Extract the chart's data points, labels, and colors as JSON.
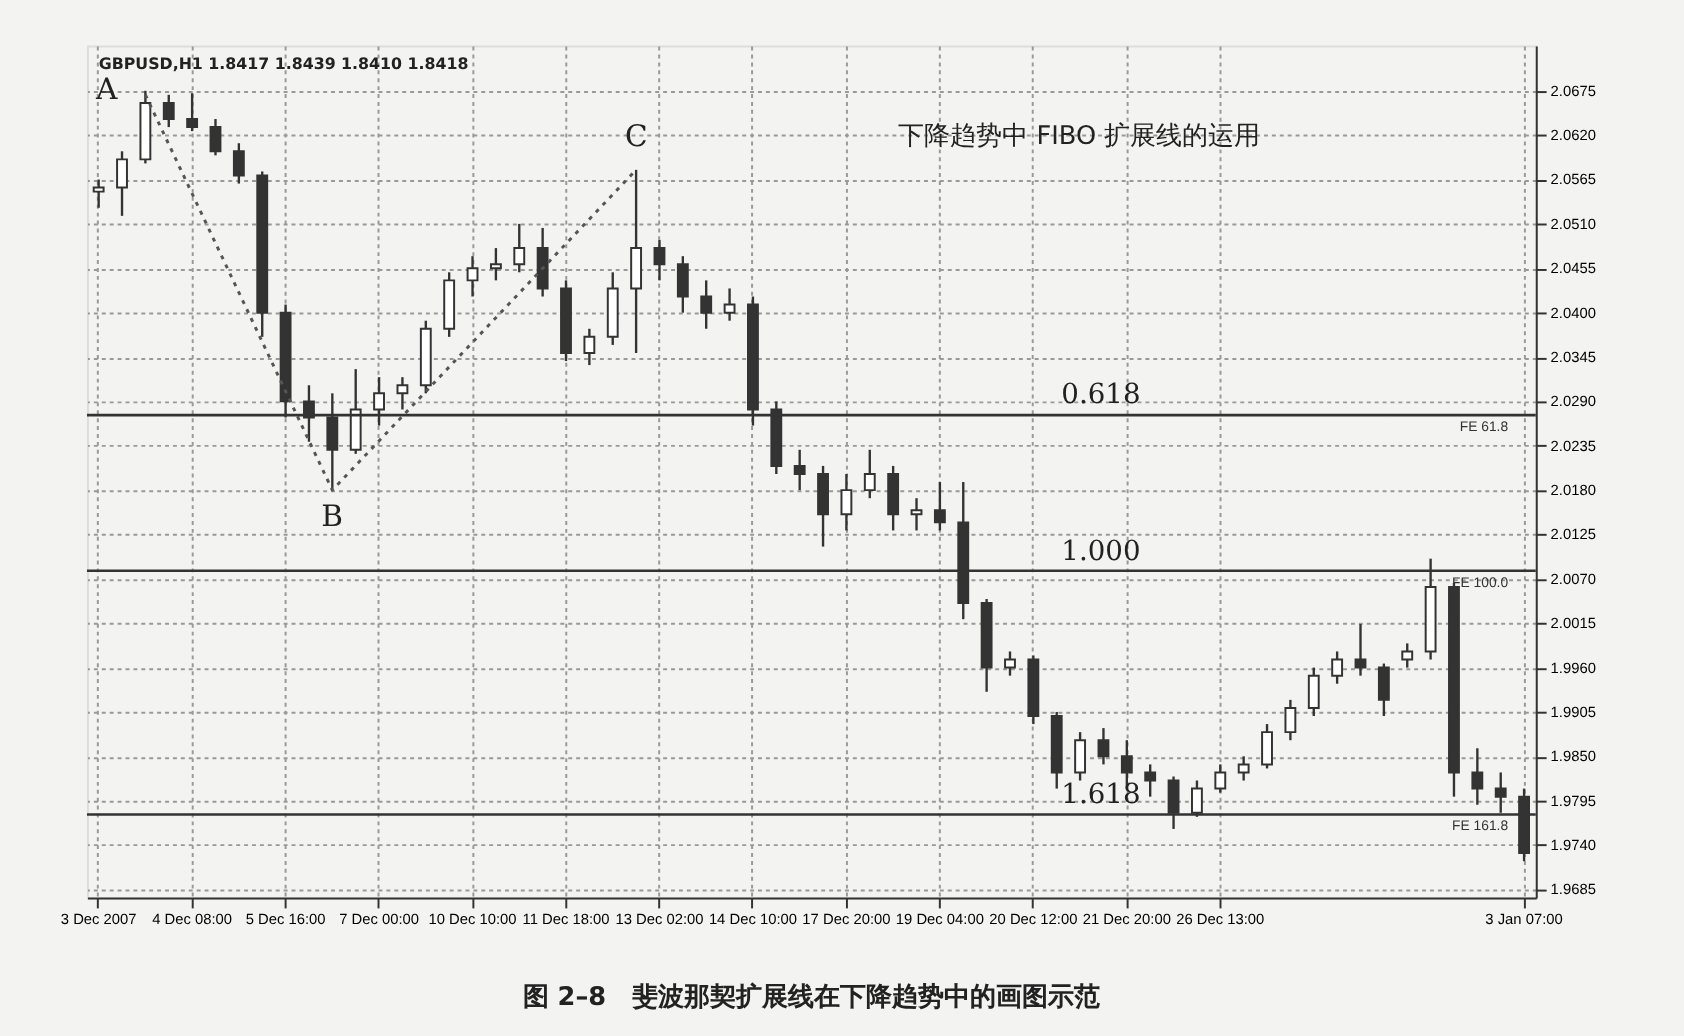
{
  "chart_data": {
    "type": "candlestick",
    "title": "图 2–8　斐波那契扩展线在下降趋势中的画图示范",
    "color": "#333333",
    "categories": [
      "3 Dec 2007",
      null,
      null,
      null,
      "4 Dec 08:00",
      null,
      null,
      null,
      "5 Dec 16:00",
      null,
      null,
      null,
      "7 Dec 00:00",
      null,
      null,
      null,
      "10 Dec 10:00",
      null,
      null,
      null,
      "11 Dec 18:00",
      null,
      null,
      null,
      "13 Dec 02:00",
      null,
      null,
      null,
      "14 Dec 10:00",
      null,
      null,
      null,
      "17 Dec 20:00",
      null,
      null,
      null,
      "19 Dec 04:00",
      null,
      null,
      null,
      "20 Dec 12:00",
      null,
      null,
      null,
      "21 Dec 20:00",
      null,
      null,
      null,
      "26 Dec 13:00",
      null,
      null,
      null,
      null,
      null,
      null,
      null,
      null,
      null,
      null,
      null,
      null,
      "3 Jan 07:00"
    ],
    "ohlc": [
      [
        2.055,
        2.0565,
        2.053,
        2.0555
      ],
      [
        2.0555,
        2.06,
        2.052,
        2.059
      ],
      [
        2.059,
        2.0675,
        2.0585,
        2.066
      ],
      [
        2.066,
        2.067,
        2.063,
        2.064
      ],
      [
        2.064,
        2.0672,
        2.0625,
        2.063
      ],
      [
        2.063,
        2.064,
        2.0595,
        2.06
      ],
      [
        2.06,
        2.061,
        2.056,
        2.057
      ],
      [
        2.057,
        2.0575,
        2.037,
        2.04
      ],
      [
        2.04,
        2.041,
        2.027,
        2.029
      ],
      [
        2.029,
        2.031,
        2.024,
        2.027
      ],
      [
        2.027,
        2.03,
        2.018,
        2.023
      ],
      [
        2.023,
        2.033,
        2.0225,
        2.028
      ],
      [
        2.028,
        2.032,
        2.026,
        2.03
      ],
      [
        2.03,
        2.032,
        2.028,
        2.031
      ],
      [
        2.031,
        2.039,
        2.03,
        2.038
      ],
      [
        2.038,
        2.045,
        2.037,
        2.044
      ],
      [
        2.044,
        2.047,
        2.042,
        2.0455
      ],
      [
        2.0455,
        2.048,
        2.044,
        2.046
      ],
      [
        2.046,
        2.051,
        2.045,
        2.048
      ],
      [
        2.048,
        2.0505,
        2.042,
        2.043
      ],
      [
        2.043,
        2.044,
        2.034,
        2.035
      ],
      [
        2.035,
        2.038,
        2.0335,
        2.037
      ],
      [
        2.037,
        2.045,
        2.036,
        2.043
      ],
      [
        2.043,
        2.0577,
        2.035,
        2.048
      ],
      [
        2.048,
        2.049,
        2.044,
        2.046
      ],
      [
        2.046,
        2.047,
        2.04,
        2.042
      ],
      [
        2.042,
        2.044,
        2.038,
        2.04
      ],
      [
        2.04,
        2.043,
        2.039,
        2.041
      ],
      [
        2.041,
        2.042,
        2.026,
        2.028
      ],
      [
        2.028,
        2.029,
        2.02,
        2.021
      ],
      [
        2.021,
        2.023,
        2.018,
        2.02
      ],
      [
        2.02,
        2.021,
        2.011,
        2.015
      ],
      [
        2.015,
        2.02,
        2.013,
        2.018
      ],
      [
        2.018,
        2.023,
        2.017,
        2.02
      ],
      [
        2.02,
        2.021,
        2.013,
        2.015
      ],
      [
        2.015,
        2.017,
        2.013,
        2.0155
      ],
      [
        2.0155,
        2.019,
        2.013,
        2.014
      ],
      [
        2.014,
        2.019,
        2.002,
        2.004
      ],
      [
        2.004,
        2.0045,
        1.993,
        1.996
      ],
      [
        1.996,
        1.998,
        1.995,
        1.997
      ],
      [
        1.997,
        1.9975,
        1.989,
        1.99
      ],
      [
        1.99,
        1.9905,
        1.981,
        1.983
      ],
      [
        1.983,
        1.988,
        1.982,
        1.987
      ],
      [
        1.987,
        1.9885,
        1.984,
        1.985
      ],
      [
        1.985,
        1.987,
        1.981,
        1.983
      ],
      [
        1.983,
        1.984,
        1.98,
        1.982
      ],
      [
        1.982,
        1.9825,
        1.976,
        1.978
      ],
      [
        1.978,
        1.982,
        1.9775,
        1.981
      ],
      [
        1.981,
        1.984,
        1.9805,
        1.983
      ],
      [
        1.983,
        1.985,
        1.982,
        1.984
      ],
      [
        1.984,
        1.989,
        1.9835,
        1.988
      ],
      [
        1.988,
        1.992,
        1.987,
        1.991
      ],
      [
        1.991,
        1.996,
        1.99,
        1.995
      ],
      [
        1.995,
        1.998,
        1.994,
        1.997
      ],
      [
        1.997,
        2.0014,
        1.995,
        1.996
      ],
      [
        1.996,
        1.9965,
        1.99,
        1.992
      ],
      [
        1.997,
        1.999,
        1.996,
        1.998
      ],
      [
        1.998,
        2.0095,
        1.997,
        2.006
      ],
      [
        2.006,
        2.0065,
        1.98,
        1.983
      ],
      [
        1.983,
        1.986,
        1.979,
        1.981
      ],
      [
        1.981,
        1.983,
        1.978,
        1.98
      ],
      [
        1.98,
        1.981,
        1.972,
        1.973
      ]
    ],
    "series": [
      {
        "type": "line",
        "values": [
          null,
          null,
          2.067,
          null,
          null,
          null,
          null,
          null,
          null,
          null,
          2.018,
          null,
          null,
          null,
          null,
          null,
          null,
          null,
          null,
          null,
          null,
          null,
          null,
          2.0577,
          null,
          null,
          null,
          null,
          null,
          null,
          null,
          null,
          null,
          null,
          null,
          null,
          null,
          null,
          null,
          null,
          null,
          null,
          null,
          null,
          null,
          null,
          null,
          null,
          null,
          null,
          null,
          null,
          null,
          null,
          null,
          null,
          null,
          null,
          null,
          null,
          null,
          null
        ],
        "color": "#555555",
        "line_style": "dotted"
      }
    ],
    "ylim": [
      1.9675,
      2.0731
    ],
    "yticks": [
      {
        "value": 1.9685,
        "label": "1.9685"
      },
      {
        "value": 1.974,
        "label": "1.9740"
      },
      {
        "value": 1.9795,
        "label": "1.9795"
      },
      {
        "value": 1.985,
        "label": "1.9850"
      },
      {
        "value": 1.9905,
        "label": "1.9905"
      },
      {
        "value": 1.996,
        "label": "1.9960"
      },
      {
        "value": 2.0015,
        "label": "2.0015"
      },
      {
        "value": 2.007,
        "label": "2.0070"
      },
      {
        "value": 2.0125,
        "label": "2.0125"
      },
      {
        "value": 2.018,
        "label": "2.0180"
      },
      {
        "value": 2.0235,
        "label": "2.0235"
      },
      {
        "value": 2.029,
        "label": "2.0290"
      },
      {
        "value": 2.0345,
        "label": "2.0345"
      },
      {
        "value": 2.04,
        "label": "2.0400"
      },
      {
        "value": 2.0455,
        "label": "2.0455"
      },
      {
        "value": 2.051,
        "label": "2.0510"
      },
      {
        "value": 2.0565,
        "label": "2.0565"
      },
      {
        "value": 2.062,
        "label": "2.0620"
      },
      {
        "value": 2.0675,
        "label": "2.0675"
      }
    ],
    "grid": true,
    "ref_lines": [
      {
        "axis": "y",
        "value": 2.0273,
        "label": "FE 61.8",
        "color": "#333333"
      },
      {
        "axis": "y",
        "value": 2.008,
        "label": "FE 100.0",
        "color": "#333333"
      },
      {
        "axis": "y",
        "value": 1.9778,
        "label": "FE 161.8",
        "color": "#333333"
      }
    ],
    "annotations": [
      "GBPUSD,H1 1.8417 1.8439 1.8410 1.8418",
      "下降趋势中 FIBO 扩展线的运用",
      "A",
      "B",
      "C",
      "0.618",
      "1.000",
      "1.618"
    ]
  }
}
